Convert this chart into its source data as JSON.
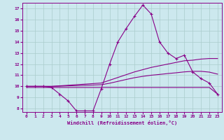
{
  "xlabel": "Windchill (Refroidissement éolien,°C)",
  "background_color": "#cce8ee",
  "grid_color": "#aacccc",
  "line_color": "#880088",
  "xlim": [
    -0.5,
    23.5
  ],
  "ylim": [
    7.7,
    17.5
  ],
  "xticks": [
    0,
    1,
    2,
    3,
    4,
    5,
    6,
    7,
    8,
    9,
    10,
    11,
    12,
    13,
    14,
    15,
    16,
    17,
    18,
    19,
    20,
    21,
    22,
    23
  ],
  "yticks": [
    8,
    9,
    10,
    11,
    12,
    13,
    14,
    15,
    16,
    17
  ],
  "curve1_x": [
    0,
    1,
    2,
    3,
    4,
    5,
    6,
    7,
    8,
    9,
    10,
    11,
    12,
    13,
    14,
    15,
    16,
    17,
    18,
    19,
    20,
    21,
    22,
    23
  ],
  "curve1_y": [
    10.0,
    10.0,
    10.0,
    9.9,
    9.3,
    8.7,
    7.8,
    7.8,
    7.8,
    9.8,
    12.0,
    14.0,
    15.2,
    16.3,
    17.3,
    16.5,
    14.0,
    13.0,
    12.5,
    12.8,
    11.3,
    10.7,
    10.3,
    9.3
  ],
  "curve2_x": [
    0,
    1,
    2,
    3,
    4,
    5,
    6,
    7,
    8,
    9,
    10,
    11,
    12,
    13,
    14,
    15,
    16,
    17,
    18,
    19,
    20,
    21,
    22,
    23
  ],
  "curve2_y": [
    10.0,
    10.0,
    10.0,
    10.0,
    10.05,
    10.1,
    10.15,
    10.2,
    10.25,
    10.3,
    10.55,
    10.8,
    11.05,
    11.3,
    11.5,
    11.7,
    11.85,
    12.0,
    12.15,
    12.3,
    12.35,
    12.45,
    12.5,
    12.5
  ],
  "curve3_x": [
    0,
    1,
    2,
    3,
    4,
    5,
    6,
    7,
    8,
    9,
    10,
    11,
    12,
    13,
    14,
    15,
    16,
    17,
    18,
    19,
    20,
    21,
    22,
    23
  ],
  "curve3_y": [
    10.0,
    10.0,
    10.0,
    10.0,
    10.02,
    10.05,
    10.07,
    10.1,
    10.12,
    10.15,
    10.28,
    10.45,
    10.62,
    10.78,
    10.9,
    11.0,
    11.07,
    11.15,
    11.22,
    11.3,
    11.35,
    11.35,
    11.28,
    11.1
  ],
  "curve4_x": [
    0,
    1,
    2,
    3,
    4,
    5,
    6,
    7,
    8,
    9,
    10,
    11,
    12,
    13,
    14,
    15,
    16,
    17,
    18,
    19,
    20,
    21,
    22,
    23
  ],
  "curve4_y": [
    9.9,
    9.9,
    9.9,
    9.9,
    9.9,
    9.9,
    9.9,
    9.9,
    9.9,
    9.9,
    9.9,
    9.9,
    9.9,
    9.9,
    9.9,
    9.9,
    9.9,
    9.9,
    9.9,
    9.9,
    9.9,
    9.9,
    9.9,
    9.3
  ]
}
